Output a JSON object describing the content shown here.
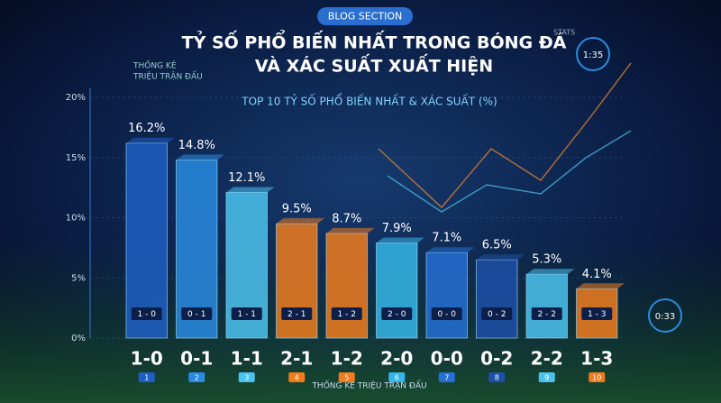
{
  "badge": "BLOG SECTION",
  "side_note": [
    "THỐNG KÊ",
    "TRIỆU TRẬN ĐẤU"
  ],
  "widget": {
    "label": "STATS",
    "time": "1:35",
    "time2": "0:33"
  },
  "chart_data": {
    "type": "bar",
    "title": [
      "TỶ SỐ PHỔ BIẾN NHẤT TRONG BÓNG ĐÁ",
      "VÀ XÁC SUẤT XUẤT HIỆN"
    ],
    "subtitle": "TOP 10 TỶ SỐ PHỔ BIẾN NHẤT & XÁC SUẤT (%)",
    "x_label": "THỐNG KÊ TRIỆU TRẬN ĐẤU",
    "categories": [
      "1-0",
      "0-1",
      "1-1",
      "2-1",
      "1-2",
      "2-0",
      "0-0",
      "0-2",
      "2-2",
      "1-3"
    ],
    "inner_labels": [
      "1 - 0",
      "0 - 1",
      "1 - 1",
      "2 - 1",
      "1 - 2",
      "2 - 0",
      "0 - 0",
      "0 - 2",
      "2 - 2",
      "1 - 3"
    ],
    "ranks": [
      1,
      2,
      3,
      4,
      5,
      6,
      7,
      8,
      9,
      10
    ],
    "values": [
      16.2,
      14.8,
      12.1,
      9.5,
      8.7,
      7.9,
      7.1,
      6.5,
      5.3,
      4.1
    ],
    "value_labels": [
      "16.2%",
      "14.8%",
      "12.1%",
      "9.5%",
      "8.7%",
      "7.9%",
      "7.1%",
      "6.5%",
      "5.3%",
      "4.1%"
    ],
    "colors": [
      "#1f5fc4",
      "#2a8be0",
      "#4cc3ee",
      "#f07c1e",
      "#f07c1e",
      "#36b6e8",
      "#2470d6",
      "#1d4fa8",
      "#4cc3ee",
      "#f07c1e"
    ],
    "ylim": [
      0,
      20
    ],
    "yticks": [
      {
        "value": 0,
        "label": "0%"
      },
      {
        "value": 5,
        "label": "5%"
      },
      {
        "value": 10,
        "label": "10%"
      },
      {
        "value": 15,
        "label": "15%"
      },
      {
        "value": 20,
        "label": "20%"
      }
    ],
    "grid": true
  }
}
